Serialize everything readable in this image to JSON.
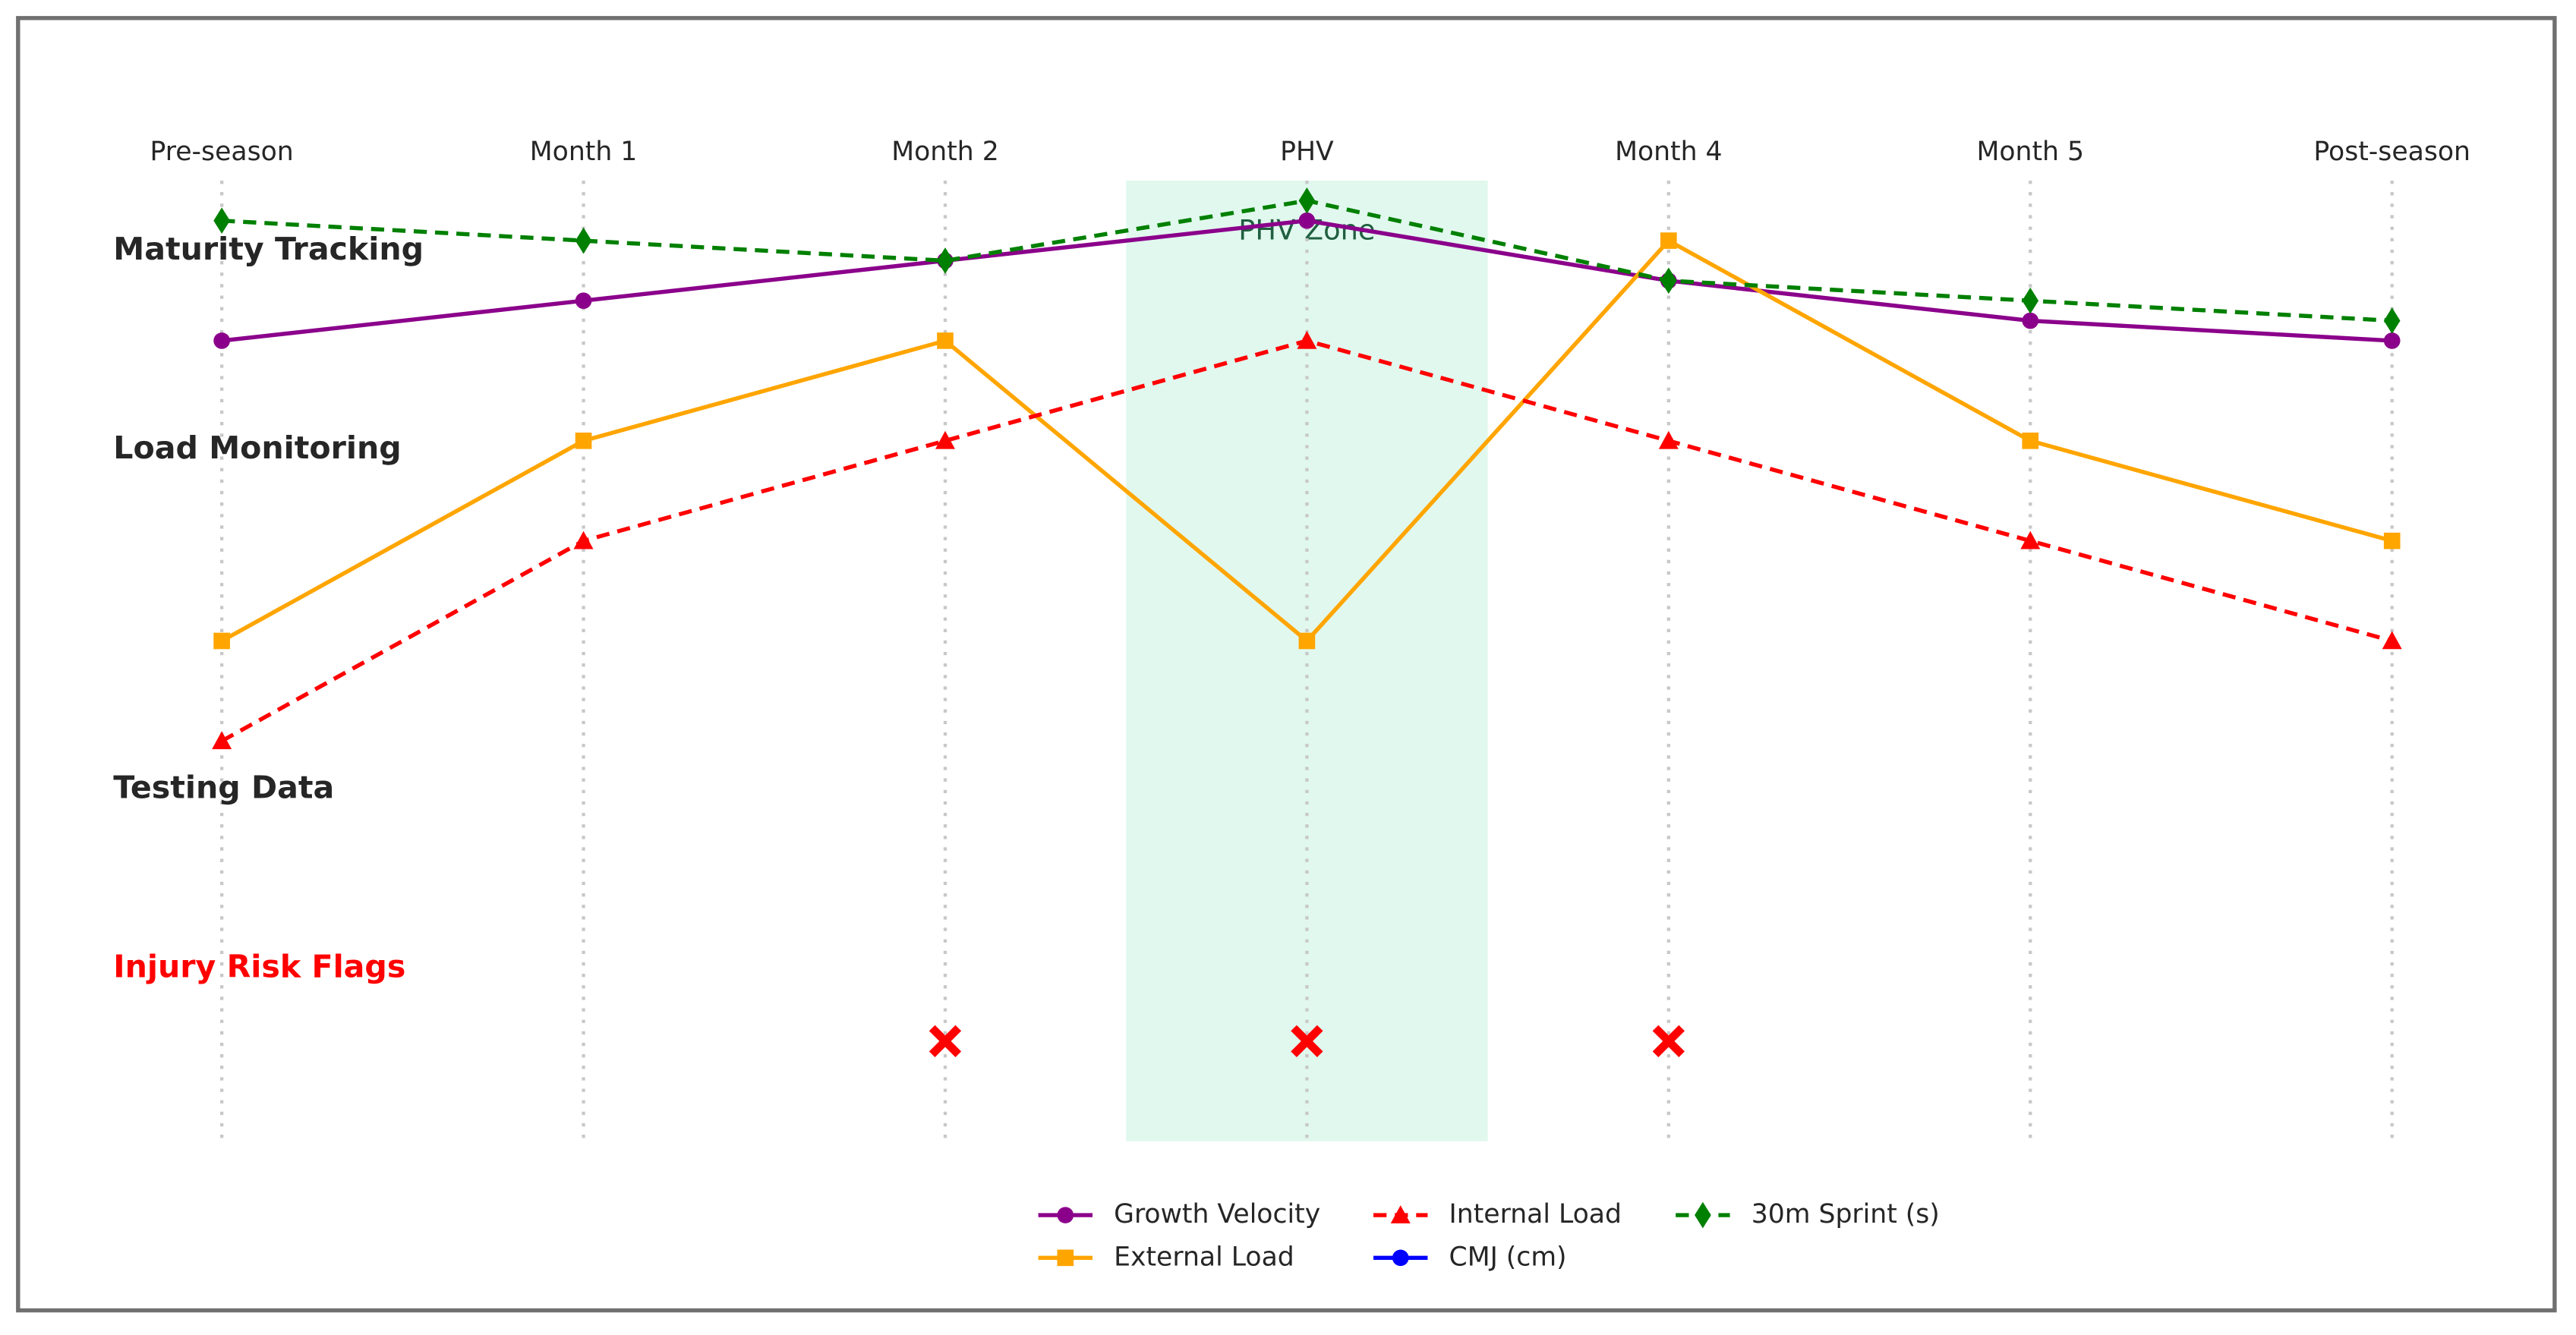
{
  "chart_data": {
    "type": "line",
    "categories": [
      "Pre-season",
      "Month 1",
      "Month 2",
      "PHV",
      "Month 4",
      "Month 5",
      "Post-season"
    ],
    "ylim": [
      0,
      48
    ],
    "grid": true,
    "row_labels": [
      {
        "text": "Maturity Tracking",
        "color": "#262626"
      },
      {
        "text": "Load Monitoring",
        "color": "#262626"
      },
      {
        "text": "Testing Data",
        "color": "#262626"
      },
      {
        "text": "Injury Risk Flags",
        "color": "#ff0000"
      }
    ],
    "zone": {
      "label": "PHV Zone",
      "color": "#c8f2e0"
    },
    "series": [
      {
        "name": "Growth Velocity",
        "color": "#8b008b",
        "marker": "circle",
        "dashed": false,
        "values": [
          40,
          42,
          44,
          46,
          43,
          41,
          40
        ]
      },
      {
        "name": "External Load",
        "color": "#ffa500",
        "marker": "square",
        "dashed": false,
        "values": [
          25,
          35,
          40,
          25,
          45,
          35,
          30
        ]
      },
      {
        "name": "Internal Load",
        "color": "#ff0000",
        "marker": "triangle",
        "dashed": true,
        "values": [
          20,
          30,
          35,
          40,
          35,
          30,
          25
        ]
      },
      {
        "name": "CMJ (cm)",
        "color": "#0000ff",
        "marker": "circle",
        "dashed": false,
        "values": [
          null,
          null,
          null,
          null,
          null,
          null,
          null
        ]
      },
      {
        "name": "30m Sprint (s)",
        "color": "#008000",
        "marker": "diamond",
        "dashed": true,
        "values": [
          46,
          45,
          44,
          47,
          43,
          42,
          41
        ]
      }
    ],
    "injury_flags": {
      "color": "#ff0000",
      "values": [
        null,
        null,
        5,
        5,
        5,
        null,
        null
      ]
    }
  }
}
